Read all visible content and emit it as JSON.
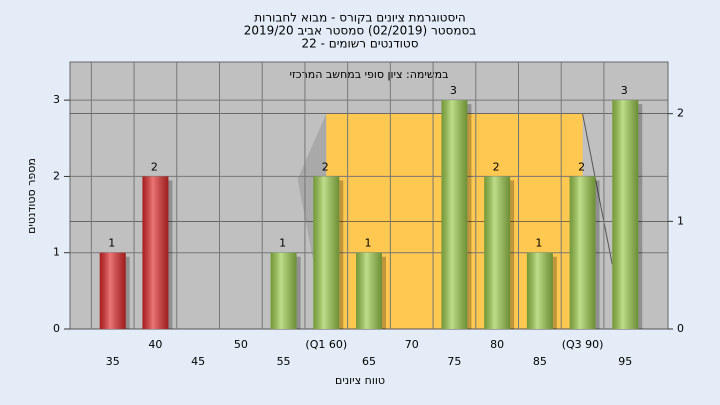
{
  "chart_data": {
    "type": "bar",
    "title_lines": [
      "היסטוגרמת ציונים בקורס - מבוא לחבורות",
      "בסמסטר  (02/2019)  סמסטר אביב 2019/20",
      "סטודנטים רשומים - 22"
    ],
    "annotation": "במשימה: ציון סופי במחשב המרכזי",
    "x_label": "טווח ציונים",
    "y_label": "מספר סטודנטים",
    "categories": [
      "35",
      "40",
      "45",
      "50",
      "55",
      "(Q1 60)",
      "65",
      "70",
      "75",
      "80",
      "85",
      "(Q3 90)",
      "95"
    ],
    "values": [
      1,
      2,
      0,
      0,
      1,
      2,
      1,
      0,
      3,
      2,
      1,
      2,
      3
    ],
    "colors": [
      "#e02a2a",
      "#e02a2a",
      "#e02a2a",
      "#e02a2a",
      "#9ccc4c",
      "#9ccc4c",
      "#9ccc4c",
      "#9ccc4c",
      "#9ccc4c",
      "#9ccc4c",
      "#9ccc4c",
      "#9ccc4c",
      "#9ccc4c"
    ],
    "xlim": [
      30,
      100
    ],
    "ylim": [
      0,
      3.5
    ],
    "yticks": [
      0,
      1,
      2,
      3
    ],
    "y2lim": [
      0,
      2.48
    ],
    "y2ticks": [
      0,
      1,
      2
    ],
    "box": {
      "axis": "y2",
      "color": "#ffc850",
      "whisker_color": "#a9a9a9",
      "low": 55,
      "q1": 60,
      "q3": 90,
      "high": 95,
      "height": 2
    },
    "grid": true
  }
}
